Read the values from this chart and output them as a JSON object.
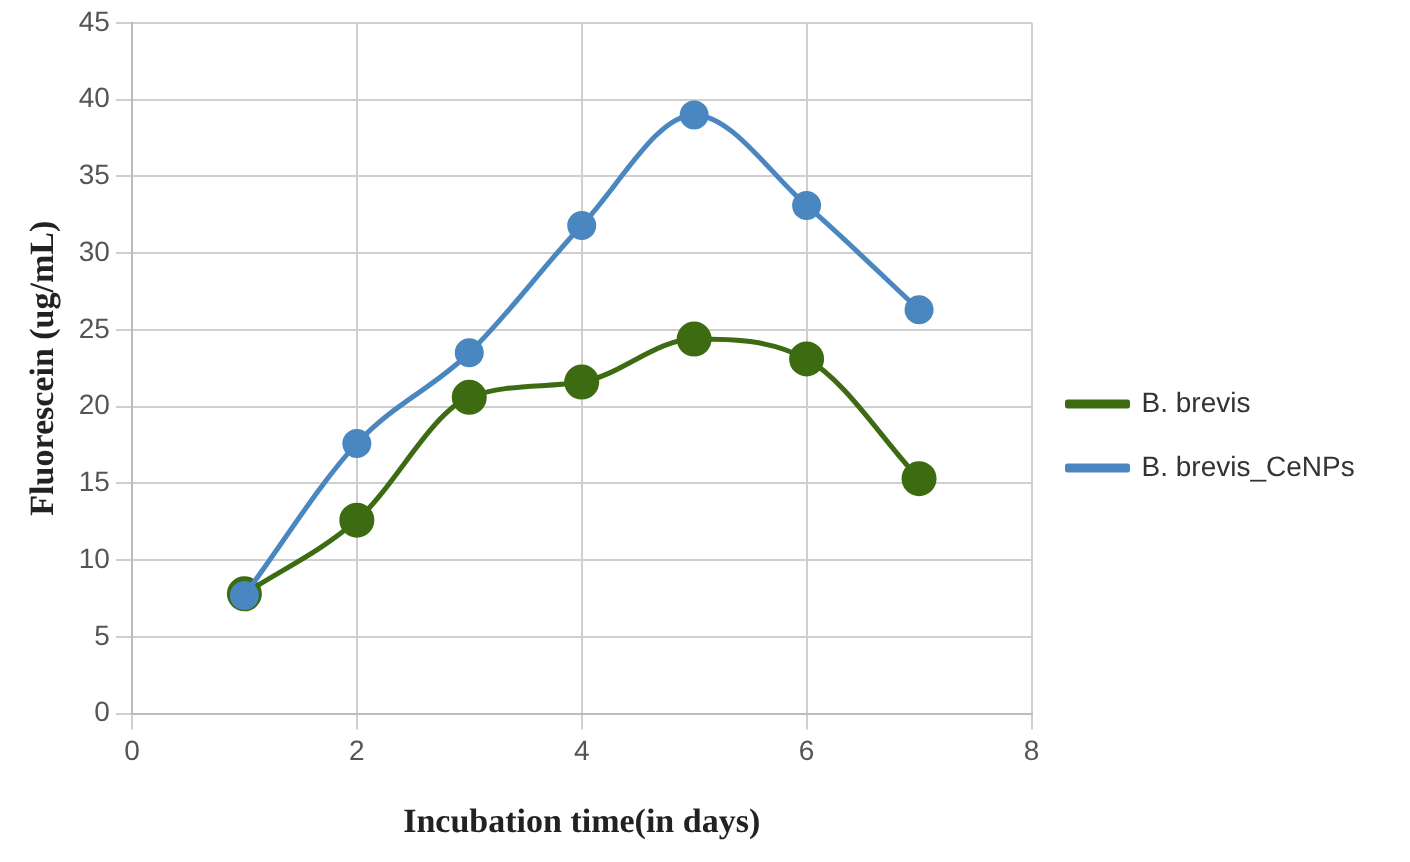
{
  "chart_data": {
    "type": "line",
    "xlabel": "Incubation time(in days)",
    "ylabel": "Fluorescein (ug/mL)",
    "x": [
      1,
      2,
      3,
      4,
      5,
      6,
      7
    ],
    "series": [
      {
        "name": "B. brevis",
        "color": "#3d6b12",
        "values": [
          7.8,
          12.6,
          20.6,
          21.6,
          24.4,
          23.1,
          15.3
        ]
      },
      {
        "name": "B. brevis_CeNPs",
        "color": "#4a86c0",
        "values": [
          7.7,
          17.6,
          23.5,
          31.8,
          39,
          33.1,
          26.3
        ]
      }
    ],
    "xlim": [
      0,
      8
    ],
    "xticks": [
      0,
      2,
      4,
      6,
      8
    ],
    "ylim": [
      0,
      45
    ],
    "yticks": [
      0,
      5,
      10,
      15,
      20,
      25,
      30,
      35,
      40,
      45
    ],
    "grid": true,
    "legend": "right",
    "marker": "circle",
    "line_style": "solid"
  }
}
